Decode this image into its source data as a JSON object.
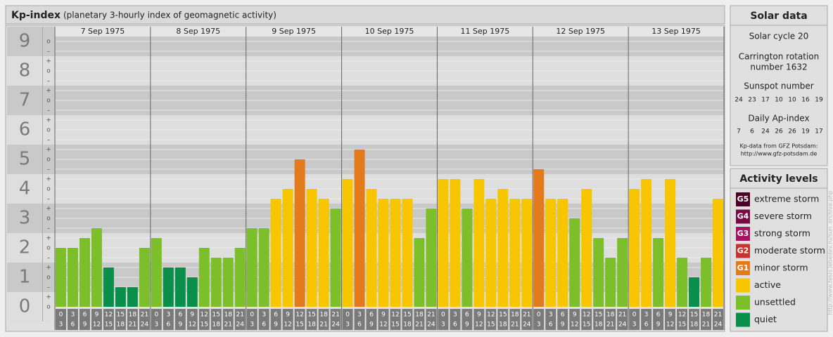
{
  "chart_data": {
    "type": "bar",
    "title": "Kp-index",
    "subtitle": "(planetary 3-hourly index of geomagnetic activity)",
    "ylim": [
      -0.5,
      9.5
    ],
    "yticks": [
      0,
      1,
      2,
      3,
      4,
      5,
      6,
      7,
      8,
      9
    ],
    "minor_yticks": [
      {
        "value": 0,
        "label": "o"
      },
      {
        "value": 0.333,
        "label": "+"
      },
      {
        "value": 0.667,
        "label": "–"
      },
      {
        "value": 1,
        "label": "o"
      },
      {
        "value": 1.333,
        "label": "+"
      },
      {
        "value": 1.667,
        "label": "–"
      },
      {
        "value": 2,
        "label": "o"
      },
      {
        "value": 2.333,
        "label": "+"
      },
      {
        "value": 2.667,
        "label": "–"
      },
      {
        "value": 3,
        "label": "o"
      },
      {
        "value": 3.333,
        "label": "+"
      },
      {
        "value": 3.667,
        "label": "–"
      },
      {
        "value": 4,
        "label": "o"
      },
      {
        "value": 4.333,
        "label": "+"
      },
      {
        "value": 4.667,
        "label": "–"
      },
      {
        "value": 5,
        "label": "o"
      },
      {
        "value": 5.333,
        "label": "+"
      },
      {
        "value": 5.667,
        "label": "–"
      },
      {
        "value": 6,
        "label": "o"
      },
      {
        "value": 6.333,
        "label": "+"
      },
      {
        "value": 6.667,
        "label": "–"
      },
      {
        "value": 7,
        "label": "o"
      },
      {
        "value": 7.333,
        "label": "+"
      },
      {
        "value": 7.667,
        "label": "–"
      },
      {
        "value": 8,
        "label": "o"
      },
      {
        "value": 8.333,
        "label": "+"
      },
      {
        "value": 8.667,
        "label": "–"
      },
      {
        "value": 9,
        "label": "o"
      }
    ],
    "hours": [
      [
        "0",
        "3"
      ],
      [
        "3",
        "6"
      ],
      [
        "6",
        "9"
      ],
      [
        "9",
        "12"
      ],
      [
        "12",
        "15"
      ],
      [
        "15",
        "18"
      ],
      [
        "18",
        "21"
      ],
      [
        "21",
        "24"
      ]
    ],
    "days": [
      {
        "date": "7 Sep 1975",
        "values": [
          2,
          2,
          2.333,
          2.667,
          1.333,
          0.667,
          0.667,
          2
        ],
        "colors": [
          "#7dbf2b",
          "#7dbf2b",
          "#7dbf2b",
          "#7dbf2b",
          "#0a8f4b",
          "#0a8f4b",
          "#0a8f4b",
          "#7dbf2b"
        ]
      },
      {
        "date": "8 Sep 1975",
        "values": [
          2.333,
          1.333,
          1.333,
          1,
          2,
          1.667,
          1.667,
          2
        ],
        "colors": [
          "#7dbf2b",
          "#0a8f4b",
          "#0a8f4b",
          "#0a8f4b",
          "#7dbf2b",
          "#7dbf2b",
          "#7dbf2b",
          "#7dbf2b"
        ]
      },
      {
        "date": "9 Sep 1975",
        "values": [
          2.667,
          2.667,
          3.667,
          4,
          5,
          4,
          3.667,
          3.333
        ],
        "colors": [
          "#7dbf2b",
          "#7dbf2b",
          "#f7c600",
          "#f7c600",
          "#e37b1c",
          "#f7c600",
          "#f7c600",
          "#7dbf2b"
        ]
      },
      {
        "date": "10 Sep 1975",
        "values": [
          4.333,
          5.333,
          4,
          3.667,
          3.667,
          3.667,
          2.333,
          3.333
        ],
        "colors": [
          "#f7c600",
          "#e37b1c",
          "#f7c600",
          "#f7c600",
          "#f7c600",
          "#f7c600",
          "#7dbf2b",
          "#7dbf2b"
        ]
      },
      {
        "date": "11 Sep 1975",
        "values": [
          4.333,
          4.333,
          3.333,
          4.333,
          3.667,
          4,
          3.667,
          3.667
        ],
        "colors": [
          "#f7c600",
          "#f7c600",
          "#7dbf2b",
          "#f7c600",
          "#f7c600",
          "#f7c600",
          "#f7c600",
          "#f7c600"
        ]
      },
      {
        "date": "12 Sep 1975",
        "values": [
          4.667,
          3.667,
          3.667,
          3,
          4,
          2.333,
          1.667,
          2.333
        ],
        "colors": [
          "#e37b1c",
          "#f7c600",
          "#f7c600",
          "#7dbf2b",
          "#f7c600",
          "#7dbf2b",
          "#7dbf2b",
          "#7dbf2b"
        ]
      },
      {
        "date": "13 Sep 1975",
        "values": [
          4,
          4.333,
          2.333,
          4.333,
          1.667,
          1,
          1.667,
          3.667
        ],
        "colors": [
          "#f7c600",
          "#f7c600",
          "#7dbf2b",
          "#f7c600",
          "#7dbf2b",
          "#0a8f4b",
          "#7dbf2b",
          "#f7c600"
        ]
      }
    ]
  },
  "solar_data": {
    "title": "Solar data",
    "cycle": "Solar cycle 20",
    "carrington": [
      "Carrington rotation",
      "number 1632"
    ],
    "sunspot_title": "Sunspot number",
    "sunspot": [
      24,
      23,
      17,
      10,
      10,
      16,
      19
    ],
    "ap_title": "Daily Ap-index",
    "ap": [
      7,
      6,
      24,
      26,
      26,
      19,
      17
    ],
    "source": "Kp-data from GFZ Potsdam:",
    "source_url": "http://www.gfz-potsdam.de"
  },
  "activity_levels": {
    "title": "Activity levels",
    "items": [
      {
        "code": "G5",
        "label": "extreme storm",
        "color": "#4d0026"
      },
      {
        "code": "G4",
        "label": "severe storm",
        "color": "#7a0a44"
      },
      {
        "code": "G3",
        "label": "strong storm",
        "color": "#a8125e"
      },
      {
        "code": "G2",
        "label": "moderate storm",
        "color": "#c8332e"
      },
      {
        "code": "G1",
        "label": "minor storm",
        "color": "#e37b1c"
      },
      {
        "label": "active",
        "color": "#f7c600"
      },
      {
        "label": "unsettled",
        "color": "#7dbf2b"
      },
      {
        "label": "quiet",
        "color": "#0a8f4b"
      }
    ]
  },
  "side_url": "http://www.tesis.lebedev.ru/sun_archive.php"
}
